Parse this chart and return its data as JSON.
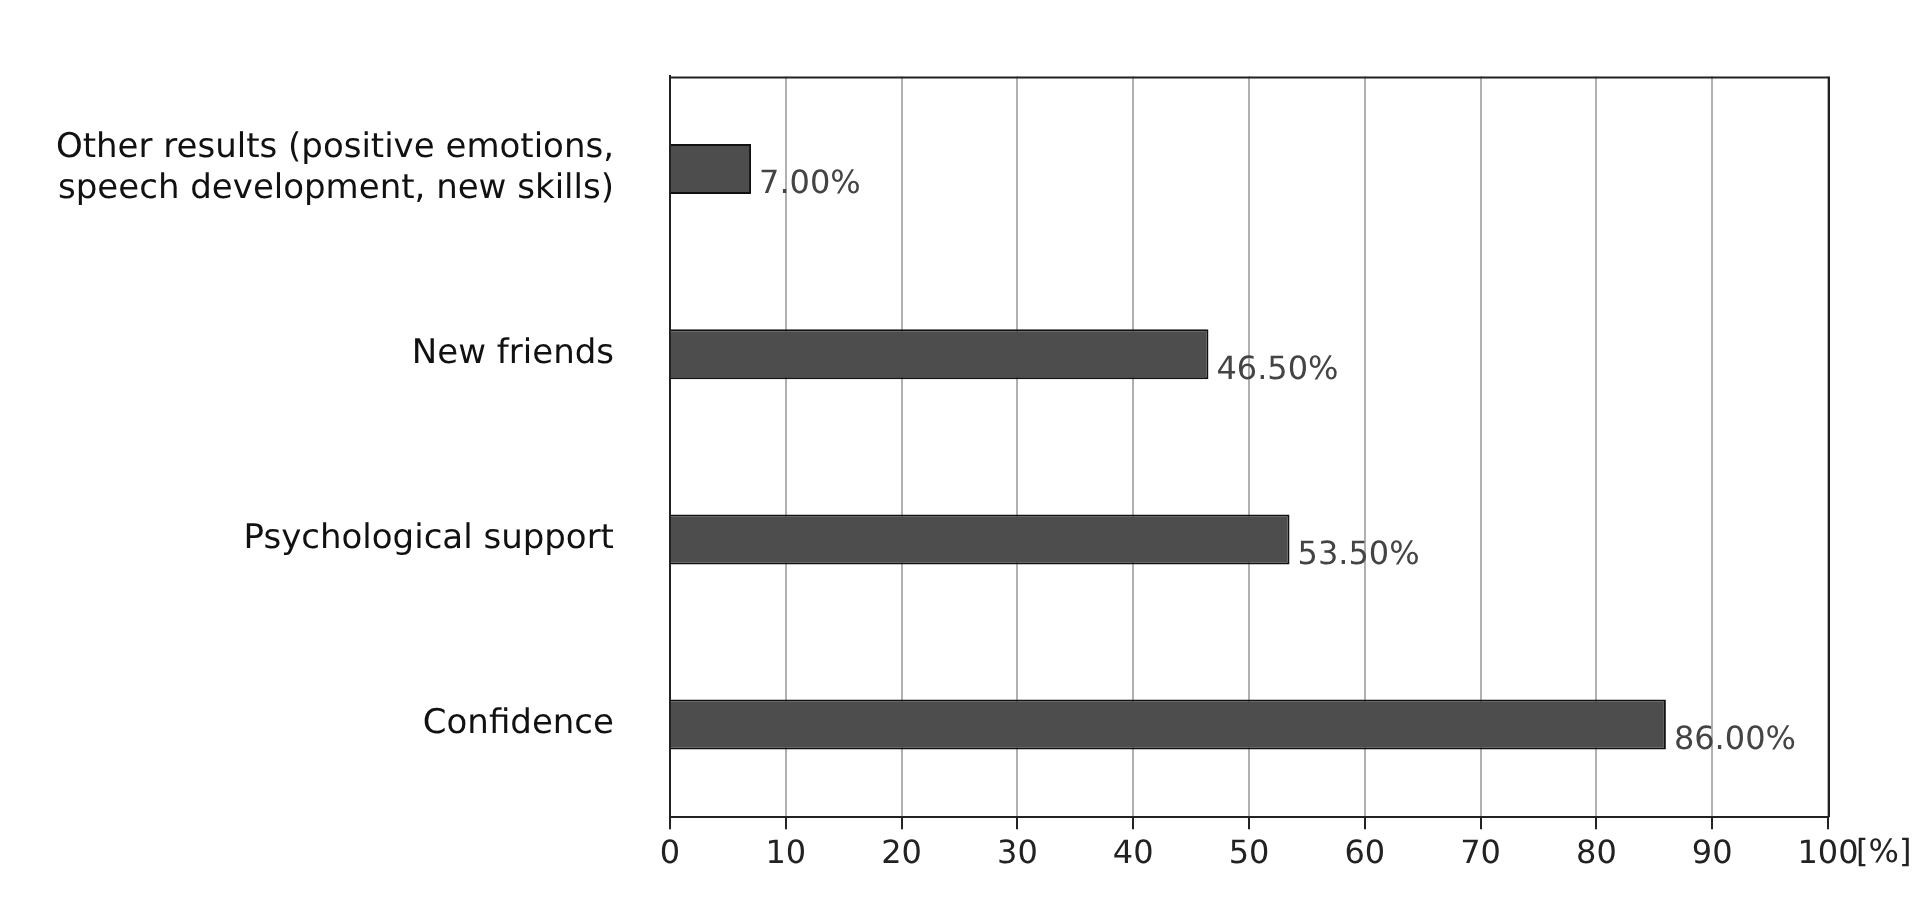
{
  "chart_data": {
    "type": "bar",
    "orientation": "horizontal",
    "categories": [
      "Other results (positive emotions, speech development, new skills)",
      "New friends",
      "Psychological support",
      "Confidence"
    ],
    "values": [
      7,
      46.5,
      53.5,
      86
    ],
    "value_labels": [
      "7.00%",
      "46.50%",
      "53.50%",
      "86.00%"
    ],
    "color": "#4d4d4d",
    "xlabel": "[%]",
    "xlim": [
      0,
      100
    ],
    "xticks": [
      0,
      10,
      20,
      30,
      40,
      50,
      60,
      70,
      80,
      90,
      100
    ],
    "grid": "x",
    "legend": false
  }
}
